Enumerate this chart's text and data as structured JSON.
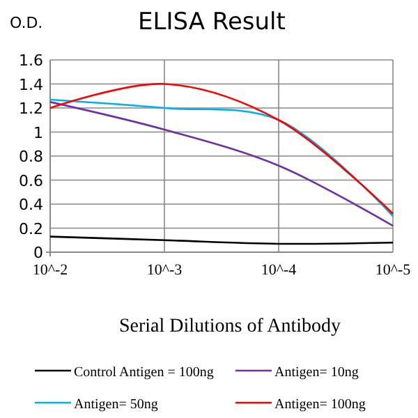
{
  "chart_data": {
    "type": "line",
    "title": "ELISA Result",
    "ylabel": "O.D.",
    "xlabel": "Serial Dilutions of Antibody",
    "categories": [
      "10^-2",
      "10^-3",
      "10^-4",
      "10^-5"
    ],
    "series": [
      {
        "name": "Control Antigen = 100ng",
        "color": "#000000",
        "values": [
          0.13,
          0.1,
          0.07,
          0.08
        ]
      },
      {
        "name": "Antigen= 10ng",
        "color": "#7030a0",
        "values": [
          1.25,
          1.02,
          0.72,
          0.22
        ]
      },
      {
        "name": "Antigen= 50ng",
        "color": "#00b0f0",
        "values": [
          1.27,
          1.2,
          1.1,
          0.3
        ]
      },
      {
        "name": "Antigen= 100ng",
        "color": "#ff0000",
        "values": [
          1.2,
          1.4,
          1.1,
          0.32
        ]
      }
    ],
    "ylim": [
      0,
      1.6
    ],
    "yticks": [
      0,
      0.2,
      0.4,
      0.6,
      0.8,
      1,
      1.2,
      1.4,
      1.6
    ],
    "grid": true,
    "legend": "bottom",
    "marker": "none",
    "line_style": "solid"
  }
}
